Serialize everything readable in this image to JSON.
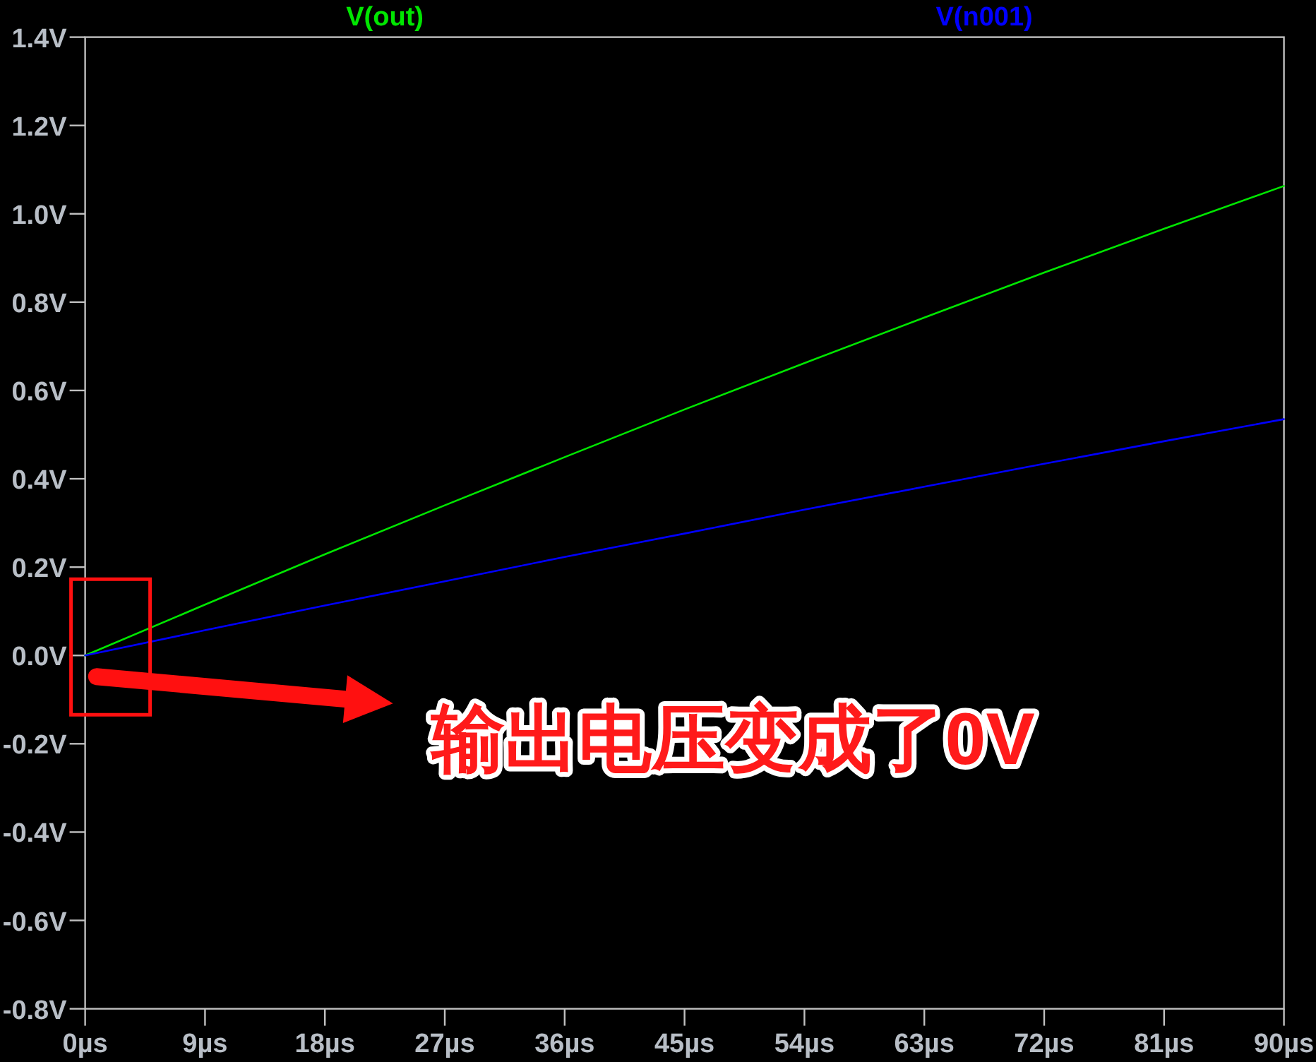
{
  "chart_data": {
    "type": "line",
    "x": [
      0,
      9,
      18,
      27,
      36,
      45,
      54,
      63,
      72,
      81,
      90
    ],
    "series": [
      {
        "name": "V(out)",
        "color": "#00e600",
        "values": [
          0,
          0.115,
          0.229,
          0.34,
          0.449,
          0.557,
          0.662,
          0.765,
          0.867,
          0.966,
          1.063
        ]
      },
      {
        "name": "V(n001)",
        "color": "#0000ff",
        "values": [
          0,
          0.057,
          0.113,
          0.168,
          0.223,
          0.276,
          0.33,
          0.382,
          0.434,
          0.485,
          0.535
        ]
      }
    ],
    "xlim": [
      0,
      90
    ],
    "ylim": [
      -0.8,
      1.4
    ],
    "xticks": [
      {
        "value": 0,
        "label": "0µs"
      },
      {
        "value": 9,
        "label": "9µs"
      },
      {
        "value": 18,
        "label": "18µs"
      },
      {
        "value": 27,
        "label": "27µs"
      },
      {
        "value": 36,
        "label": "36µs"
      },
      {
        "value": 45,
        "label": "45µs"
      },
      {
        "value": 54,
        "label": "54µs"
      },
      {
        "value": 63,
        "label": "63µs"
      },
      {
        "value": 72,
        "label": "72µs"
      },
      {
        "value": 81,
        "label": "81µs"
      },
      {
        "value": 90,
        "label": "90µs"
      }
    ],
    "yticks": [
      {
        "value": 1.4,
        "label": "1.4V"
      },
      {
        "value": 1.2,
        "label": "1.2V"
      },
      {
        "value": 1.0,
        "label": "1.0V"
      },
      {
        "value": 0.8,
        "label": "0.8V"
      },
      {
        "value": 0.6,
        "label": "0.6V"
      },
      {
        "value": 0.4,
        "label": "0.4V"
      },
      {
        "value": 0.2,
        "label": "0.2V"
      },
      {
        "value": 0,
        "label": "0.0V"
      },
      {
        "value": -0.2,
        "label": "-0.2V"
      },
      {
        "value": -0.4,
        "label": "-0.4V"
      },
      {
        "value": -0.6,
        "label": "-0.6V"
      },
      {
        "value": -0.8,
        "label": "-0.8V"
      }
    ],
    "annotations": [
      "输出电压变成了0V"
    ],
    "legend": "top"
  }
}
